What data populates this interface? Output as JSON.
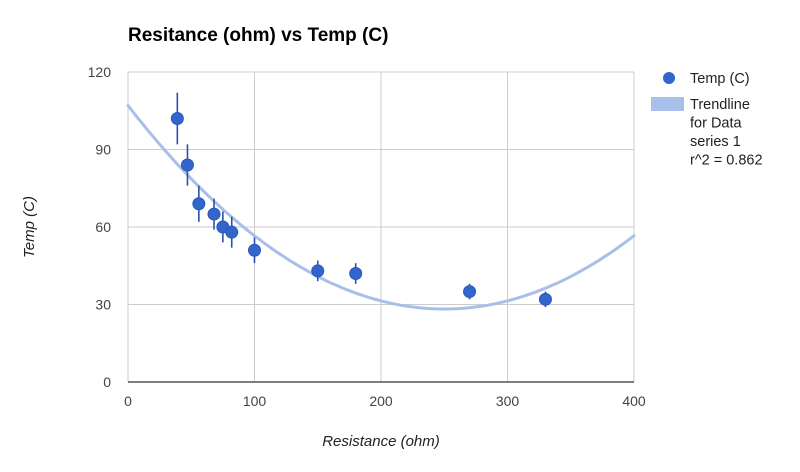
{
  "chart_data": {
    "type": "scatter",
    "title": "Resitance (ohm) vs Temp (C)",
    "xlabel": "Resistance (ohm)",
    "ylabel": "Temp (C)",
    "xlim": [
      0,
      400
    ],
    "ylim": [
      0,
      120
    ],
    "x_ticks": [
      "0",
      "100",
      "200",
      "300",
      "400"
    ],
    "y_ticks": [
      "0",
      "30",
      "60",
      "90",
      "120"
    ],
    "grid": true,
    "legend_position": "right",
    "series": [
      {
        "name": "Temp (C)",
        "color": "#3366cc",
        "points": [
          {
            "x": 39,
            "y": 102,
            "err_low": 92,
            "err_high": 112
          },
          {
            "x": 47,
            "y": 84,
            "err_low": 76,
            "err_high": 92
          },
          {
            "x": 56,
            "y": 69,
            "err_low": 62,
            "err_high": 76
          },
          {
            "x": 68,
            "y": 65,
            "err_low": 59,
            "err_high": 71
          },
          {
            "x": 75,
            "y": 60,
            "err_low": 54,
            "err_high": 66
          },
          {
            "x": 82,
            "y": 58,
            "err_low": 52,
            "err_high": 64
          },
          {
            "x": 100,
            "y": 51,
            "err_low": 46,
            "err_high": 56
          },
          {
            "x": 150,
            "y": 43,
            "err_low": 39,
            "err_high": 47
          },
          {
            "x": 180,
            "y": 42,
            "err_low": 38,
            "err_high": 46
          },
          {
            "x": 270,
            "y": 35,
            "err_low": 32,
            "err_high": 38
          },
          {
            "x": 330,
            "y": 32,
            "err_low": 29,
            "err_high": 35
          }
        ]
      }
    ],
    "trendline": {
      "label_lines": [
        "Trendline",
        "for Data",
        "series 1",
        "r^2 = 0.862"
      ],
      "color": "#a8bfe9",
      "type": "polynomial",
      "coefficients": [
        107,
        -0.63,
        0.00126
      ]
    }
  }
}
